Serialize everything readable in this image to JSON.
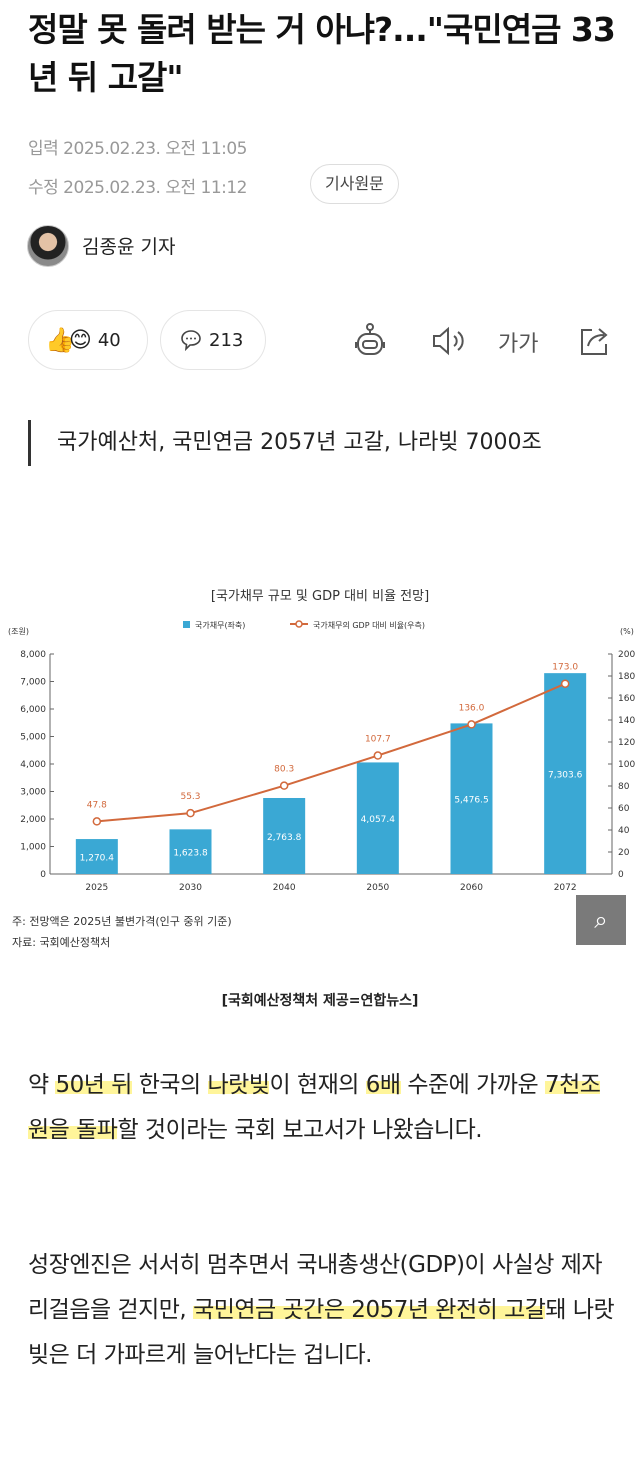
{
  "article": {
    "title": "정말 못 돌려 받는 거 아냐?...\"국민연금 33년 뒤 고갈\"",
    "published": "입력 2025.02.23. 오전 11:05",
    "modified": "수정 2025.02.23. 오전 11:12",
    "original_button": "기사원문",
    "reporter": "김종윤 기자",
    "reaction_count": "40",
    "comment_count": "213",
    "font_size_label": "가가",
    "lead": "국가예산처, 국민연금 2057년 고갈, 나라빚 7000조",
    "photo_caption": "[국회예산정책처 제공=연합뉴스]",
    "paragraphs": [
      [
        {
          "t": "약 "
        },
        {
          "t": "50년 뒤",
          "h": true
        },
        {
          "t": " 한국의 "
        },
        {
          "t": "나랏빚",
          "h": true
        },
        {
          "t": "이 현재의 "
        },
        {
          "t": "6배",
          "h": true
        },
        {
          "t": " 수준에 가까운 "
        },
        {
          "t": "7천조원을 돌파",
          "h": true
        },
        {
          "t": "할 것이라는 국회 보고서가 나왔습니다."
        }
      ],
      [
        {
          "t": "성장엔진은 서서히 멈추면서 국내총생산(GDP)이 사실상 제자리걸음을 걷지만, "
        },
        {
          "t": "국민연금 곳간은 2057년 완전히 고갈",
          "h": true
        },
        {
          "t": "돼 나랏빚은 더 가파르게 늘어난다는 겁니다."
        }
      ]
    ]
  },
  "icons": [
    "thumbs-up-emoji",
    "heart-smile-emoji",
    "comment-icon",
    "ai-robot-icon",
    "speaker-icon",
    "font-size-icon",
    "share-icon",
    "image-zoom-icon"
  ],
  "chart_data": {
    "type": "bar+line",
    "title": "[국가채무 규모 및 GDP 대비 비율 전망]",
    "categories": [
      "2025",
      "2030",
      "2040",
      "2050",
      "2060",
      "2072"
    ],
    "series": [
      {
        "name": "국가채무(좌축)",
        "type": "bar",
        "color": "#3aa8d4",
        "values": [
          1270.4,
          1623.8,
          2763.8,
          4057.4,
          5476.5,
          7303.6
        ],
        "labels": [
          "1,270.4",
          "1,623.8",
          "2,763.8",
          "4,057.4",
          "5,476.5",
          "7,303.6"
        ]
      },
      {
        "name": "국가채무의 GDP 대비 비율(우측)",
        "type": "line",
        "color": "#d2693c",
        "values": [
          47.8,
          55.3,
          80.3,
          107.7,
          136.0,
          173.0
        ],
        "labels": [
          "47.8",
          "55.3",
          "80.3",
          "107.7",
          "136.0",
          "173.0"
        ]
      }
    ],
    "yleft": {
      "unit": "(조원)",
      "range": [
        0,
        8000
      ],
      "ticks": [
        "0",
        "1,000",
        "2,000",
        "3,000",
        "4,000",
        "5,000",
        "6,000",
        "7,000",
        "8,000"
      ]
    },
    "yright": {
      "unit": "(%)",
      "range": [
        0,
        200
      ],
      "ticks": [
        "0",
        "20",
        "40",
        "60",
        "80",
        "100",
        "120",
        "140",
        "160",
        "180",
        "200"
      ]
    },
    "legend": "top",
    "note": "주: 전망액은 2025년 불변가격(인구 중위 기준)",
    "source": "자료: 국회예산정책처"
  }
}
